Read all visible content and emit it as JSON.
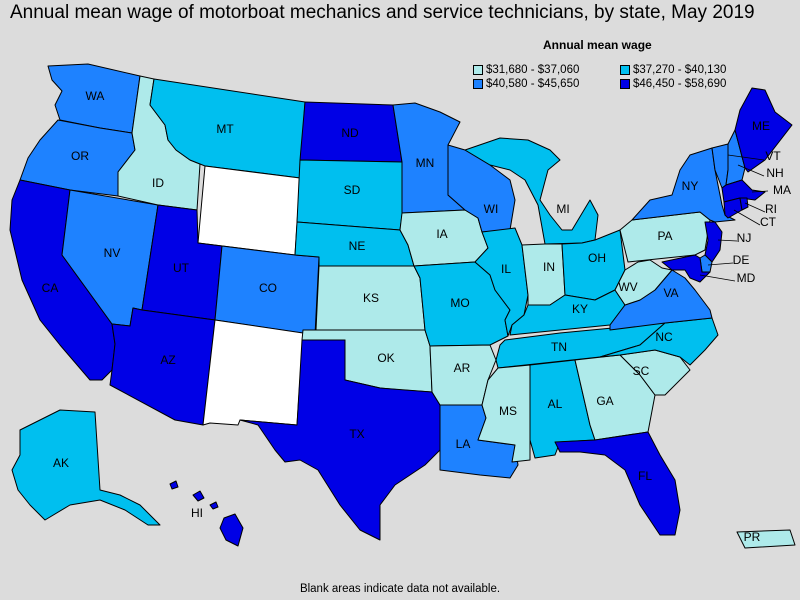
{
  "title": "Annual mean wage of motorboat mechanics and service technicians, by state, May 2019",
  "legend": {
    "title": "Annual mean wage",
    "items": [
      {
        "label": "$31,680 - $37,060",
        "color": "#aeeaea"
      },
      {
        "label": "$37,270 - $40,130",
        "color": "#00bfef"
      },
      {
        "label": "$40,580 - $45,650",
        "color": "#1e82ff"
      },
      {
        "label": "$46,450 - $58,690",
        "color": "#0000e6"
      }
    ]
  },
  "footer": "Blank areas indicate data not available.",
  "no_data_color": "#ffffff",
  "states": {
    "WA": 2,
    "OR": 2,
    "CA": 3,
    "NV": 2,
    "ID": 0,
    "MT": 1,
    "WY": -1,
    "UT": 3,
    "AZ": 3,
    "CO": 2,
    "NM": -1,
    "ND": 3,
    "SD": 1,
    "NE": 1,
    "KS": 0,
    "OK": 0,
    "TX": 3,
    "MN": 2,
    "IA": 0,
    "MO": 1,
    "AR": 0,
    "LA": 2,
    "WI": 2,
    "IL": 1,
    "MI": 1,
    "IN": 0,
    "OH": 1,
    "KY": 1,
    "TN": 1,
    "MS": 0,
    "AL": 1,
    "GA": 0,
    "FL": 3,
    "SC": 0,
    "NC": 1,
    "VA": 2,
    "WV": 0,
    "PA": 0,
    "NY": 2,
    "VT": 2,
    "NH": 2,
    "ME": 3,
    "MA": 3,
    "RI": 3,
    "CT": 3,
    "NJ": 3,
    "DE": 2,
    "MD": 3,
    "AK": 1,
    "HI": 3,
    "PR": 0
  },
  "state_labels": [
    "WA",
    "OR",
    "CA",
    "NV",
    "ID",
    "MT",
    "UT",
    "AZ",
    "CO",
    "ND",
    "SD",
    "NE",
    "KS",
    "OK",
    "TX",
    "MN",
    "IA",
    "MO",
    "AR",
    "LA",
    "WI",
    "IL",
    "MI",
    "IN",
    "OH",
    "KY",
    "TN",
    "MS",
    "AL",
    "GA",
    "FL",
    "SC",
    "NC",
    "VA",
    "WV",
    "PA",
    "NY",
    "VT",
    "NH",
    "ME",
    "MA",
    "RI",
    "CT",
    "NJ",
    "DE",
    "MD",
    "AK",
    "HI",
    "PR"
  ]
}
